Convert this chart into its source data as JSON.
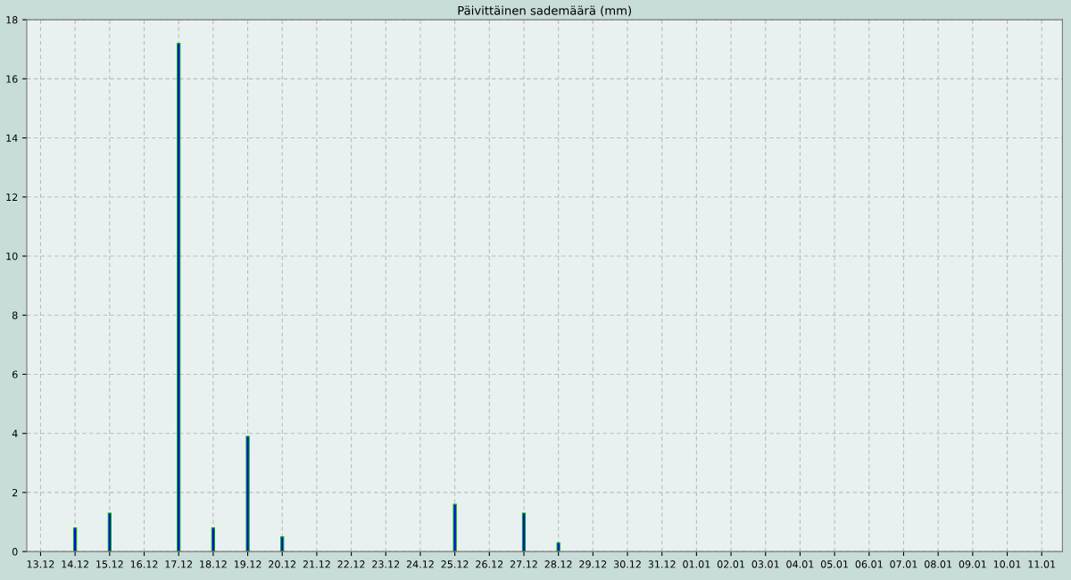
{
  "chart_data": {
    "type": "bar",
    "title": "Päivittäinen sademäärä (mm)",
    "categories": [
      "13.12",
      "14.12",
      "15.12",
      "16.12",
      "17.12",
      "18.12",
      "19.12",
      "20.12",
      "21.12",
      "22.12",
      "23.12",
      "24.12",
      "25.12",
      "26.12",
      "27.12",
      "28.12",
      "29.12",
      "30.12",
      "31.12",
      "01.01",
      "02.01",
      "03.01",
      "04.01",
      "05.01",
      "06.01",
      "07.01",
      "08.01",
      "09.01",
      "10.01",
      "11.01"
    ],
    "series": [
      {
        "color": "#0000ff",
        "values": [
          null,
          0.8,
          1.3,
          null,
          17.2,
          0.8,
          3.9,
          0.5,
          null,
          null,
          null,
          null,
          1.6,
          null,
          1.3,
          0.3,
          null,
          null,
          null,
          null,
          null,
          null,
          null,
          null,
          null,
          null,
          null,
          null,
          null,
          null
        ]
      }
    ],
    "ylim": [
      0,
      18
    ],
    "yticks": [
      0,
      2,
      4,
      6,
      8,
      10,
      12,
      14,
      16,
      18
    ],
    "grid": true
  }
}
